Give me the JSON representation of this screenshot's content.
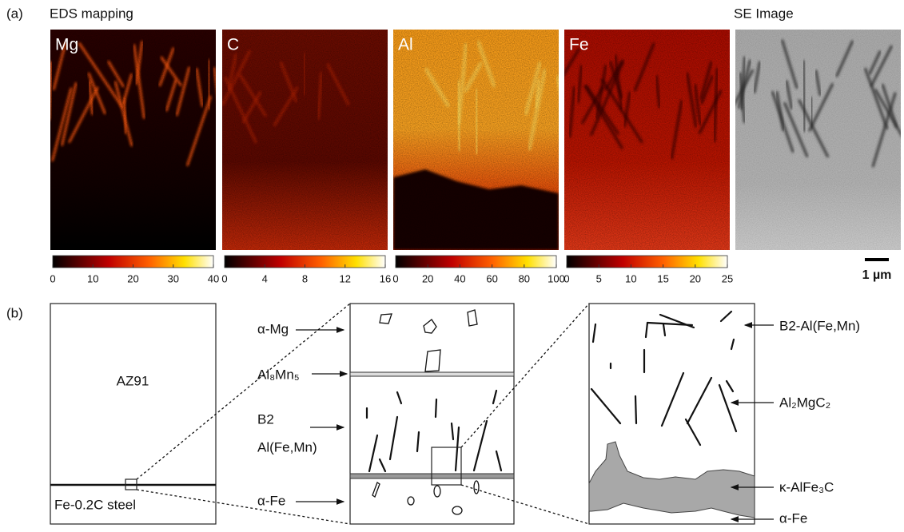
{
  "panel_a": {
    "label": "(a)",
    "title": "EDS mapping",
    "se_title": "SE Image",
    "scale_bar": "1 µm",
    "maps": [
      {
        "element": "Mg",
        "ticks": [
          0,
          10,
          20,
          30,
          40
        ]
      },
      {
        "element": "C",
        "ticks": [
          0,
          4,
          8,
          12,
          16
        ]
      },
      {
        "element": "Al",
        "ticks": [
          0,
          20,
          40,
          60,
          80,
          100
        ]
      },
      {
        "element": "Fe",
        "ticks": [
          0,
          5,
          10,
          15,
          20,
          25
        ]
      }
    ]
  },
  "panel_b": {
    "label": "(b)",
    "box1": {
      "top": "AZ91",
      "bottom": "Fe-0.2C steel"
    },
    "box2_labels": [
      "α-Mg",
      "Al₈Mn₅",
      "B2",
      "Al(Fe,Mn)",
      "α-Fe"
    ],
    "box3_labels": [
      "B2-Al(Fe,Mn)",
      "Al₂MgC₂",
      "κ-AlFe₃C",
      "α-Fe"
    ]
  }
}
